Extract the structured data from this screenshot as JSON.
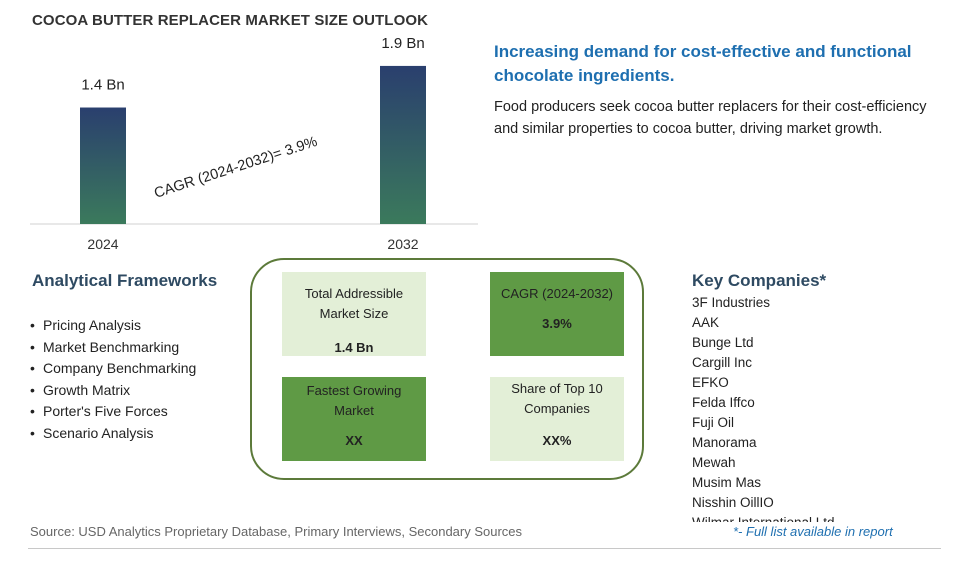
{
  "title": "COCOA BUTTER REPLACER MARKET SIZE OUTLOOK",
  "chart_data": {
    "type": "bar",
    "categories": [
      "2024",
      "2032"
    ],
    "values": [
      1.4,
      1.9
    ],
    "value_labels": [
      "1.4 Bn",
      "1.9 Bn"
    ],
    "annotation": "CAGR (2024-2032)=  3.9%",
    "title": "",
    "xlabel": "",
    "ylabel": "",
    "bar_gradient": [
      "#2a3f6e",
      "#3b7a5c"
    ]
  },
  "headline": "Increasing demand for cost-effective and functional chocolate ingredients.",
  "description": "Food producers seek cocoa butter replacers for their cost-efficiency and similar properties to cocoa butter, driving market growth.",
  "frameworks": {
    "title": "Analytical Frameworks",
    "items": [
      "Pricing Analysis",
      "Market Benchmarking",
      "Company Benchmarking",
      "Growth Matrix",
      "Porter's Five Forces",
      "Scenario Analysis"
    ]
  },
  "kpis": {
    "tam": {
      "label": "Total Addressible Market Size",
      "value": "1.4 Bn"
    },
    "cagr": {
      "label": "CAGR (2024-2032)",
      "value": "3.9%"
    },
    "fastest": {
      "label": "Fastest Growing Market",
      "value": "XX"
    },
    "share": {
      "label": "Share of Top 10 Companies",
      "value": "XX%"
    }
  },
  "companies": {
    "title": "Key Companies*",
    "items": [
      "3F Industries",
      "AAK",
      "Bunge Ltd",
      "Cargill Inc",
      "EFKO",
      "Felda Iffco",
      "Fuji Oil",
      "Manorama",
      "Mewah",
      "Musim Mas",
      "Nisshin OillIO",
      "Wilmar International Ltd"
    ]
  },
  "source": "Source: USD Analytics Proprietary Database, Primary Interviews, Secondary Sources",
  "note": "*- Full list available in report",
  "colors": {
    "accent": "#1e6fb0",
    "kpi_dark": "#5f9a45",
    "kpi_light": "#e3efd7",
    "panel_border": "#5c7a3a"
  }
}
